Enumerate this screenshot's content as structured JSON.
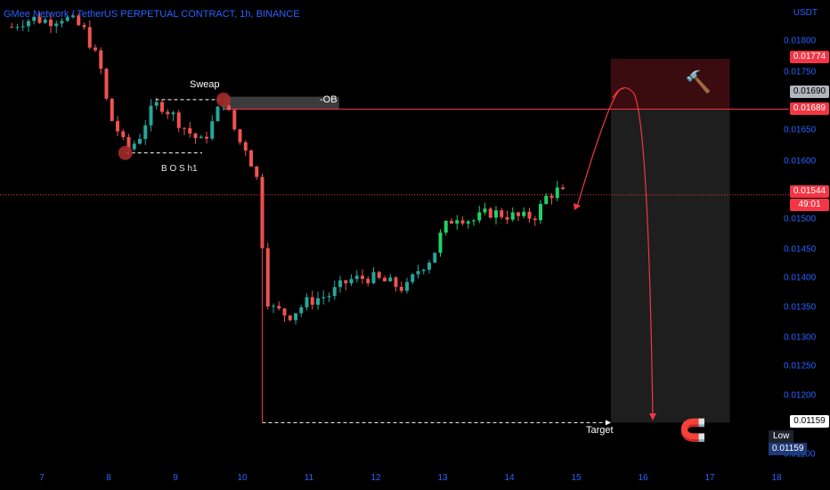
{
  "header": {
    "title": "GMee Network / TetherUS PERPETUAL CONTRACT, 1h, BINANCE",
    "unit": "USDT"
  },
  "price_axis": {
    "ticks": [
      "0.01800",
      "0.01750",
      "0.01650",
      "0.01600",
      "0.01500",
      "0.01450",
      "0.01400",
      "0.01350",
      "0.01300",
      "0.01250",
      "0.01200",
      "0.01100"
    ],
    "tags": {
      "top_zone": "0.01774",
      "ob_high": "0.01690",
      "ob_low": "0.01689",
      "last_price": "0.01544",
      "countdown": "49:01",
      "low_price": "0.01159"
    },
    "low_label": "Low",
    "low_value": "0.01159"
  },
  "time_axis": {
    "ticks": [
      "7",
      "8",
      "9",
      "10",
      "11",
      "12",
      "13",
      "14",
      "15",
      "16",
      "17",
      "18"
    ]
  },
  "annotations": {
    "sweep": "Sweap",
    "ob": "-OB",
    "bos": "B O S h1",
    "target": "Target",
    "hammer_icon": "🔨",
    "magnet_icon": "🧲"
  },
  "colors": {
    "up": "#26a69a",
    "up_bright": "#22d163",
    "down": "#ef5350",
    "axis_text": "#2962ff",
    "marker": "#a52a2a",
    "level_line": "#f23645"
  },
  "chart_data": {
    "type": "candlestick",
    "title": "GMee Network / TetherUS PERPETUAL CONTRACT, 1h, BINANCE",
    "ylabel": "USDT",
    "ylim": [
      0.01075,
      0.01845
    ],
    "x_range_days": [
      6.5,
      18.1
    ],
    "anchors": [
      {
        "day": 6.55,
        "price": 0.01828
      },
      {
        "day": 6.7,
        "price": 0.01838
      },
      {
        "day": 6.9,
        "price": 0.01842
      },
      {
        "day": 7.1,
        "price": 0.01838
      },
      {
        "day": 7.3,
        "price": 0.01845
      },
      {
        "day": 7.5,
        "price": 0.01835
      },
      {
        "day": 7.65,
        "price": 0.0182
      },
      {
        "day": 7.8,
        "price": 0.0178
      },
      {
        "day": 7.9,
        "price": 0.0175
      },
      {
        "day": 8.0,
        "price": 0.0168
      },
      {
        "day": 8.1,
        "price": 0.0166
      },
      {
        "day": 8.2,
        "price": 0.0164
      },
      {
        "day": 8.25,
        "price": 0.01615
      },
      {
        "day": 8.45,
        "price": 0.0164
      },
      {
        "day": 8.6,
        "price": 0.0168
      },
      {
        "day": 8.75,
        "price": 0.017
      },
      {
        "day": 8.95,
        "price": 0.0168
      },
      {
        "day": 9.1,
        "price": 0.01662
      },
      {
        "day": 9.25,
        "price": 0.01645
      },
      {
        "day": 9.4,
        "price": 0.01632
      },
      {
        "day": 9.55,
        "price": 0.01665
      },
      {
        "day": 9.65,
        "price": 0.0169
      },
      {
        "day": 9.72,
        "price": 0.01705
      },
      {
        "day": 9.85,
        "price": 0.01665
      },
      {
        "day": 9.95,
        "price": 0.01635
      },
      {
        "day": 10.05,
        "price": 0.01625
      },
      {
        "day": 10.15,
        "price": 0.01595
      },
      {
        "day": 10.25,
        "price": 0.0156
      },
      {
        "day": 10.28,
        "price": 0.01545
      },
      {
        "day": 10.32,
        "price": 0.0138
      },
      {
        "day": 10.45,
        "price": 0.01352
      },
      {
        "day": 10.7,
        "price": 0.0134
      },
      {
        "day": 11.0,
        "price": 0.01365
      },
      {
        "day": 11.3,
        "price": 0.01375
      },
      {
        "day": 11.6,
        "price": 0.014
      },
      {
        "day": 11.9,
        "price": 0.01405
      },
      {
        "day": 12.2,
        "price": 0.01395
      },
      {
        "day": 12.45,
        "price": 0.01385
      },
      {
        "day": 12.65,
        "price": 0.0142
      },
      {
        "day": 12.85,
        "price": 0.0144
      },
      {
        "day": 13.0,
        "price": 0.01485
      },
      {
        "day": 13.2,
        "price": 0.0151
      },
      {
        "day": 13.45,
        "price": 0.015
      },
      {
        "day": 13.7,
        "price": 0.01515
      },
      {
        "day": 13.95,
        "price": 0.0151
      },
      {
        "day": 14.2,
        "price": 0.01505
      },
      {
        "day": 14.4,
        "price": 0.0151
      },
      {
        "day": 14.55,
        "price": 0.0154
      },
      {
        "day": 14.7,
        "price": 0.01552
      },
      {
        "day": 14.83,
        "price": 0.01544
      }
    ],
    "levels": {
      "ob_zone": [
        0.01689,
        0.0171
      ],
      "last_price": 0.01544,
      "low": 0.01159,
      "projection_zone": [
        0.01159,
        0.01774
      ],
      "projection_top_zone": [
        0.01689,
        0.01774
      ]
    },
    "xlabel": "",
    "grid": false
  }
}
